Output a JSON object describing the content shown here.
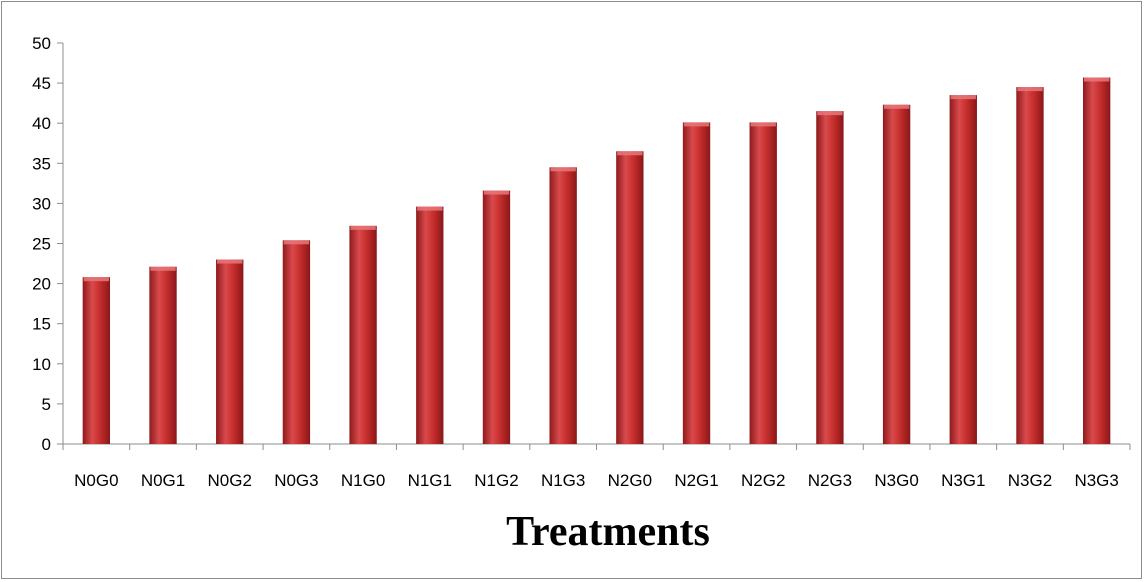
{
  "chart_data": {
    "type": "bar",
    "title": "",
    "xlabel": "Treatments",
    "ylabel": "",
    "ylim": [
      0,
      50
    ],
    "yticks": [
      0,
      5,
      10,
      15,
      20,
      25,
      30,
      35,
      40,
      45,
      50
    ],
    "categories": [
      "N0G0",
      "N0G1",
      "N0G2",
      "N0G3",
      "N1G0",
      "N1G1",
      "N1G2",
      "N1G3",
      "N2G0",
      "N2G1",
      "N2G2",
      "N2G3",
      "N3G0",
      "N3G1",
      "N3G2",
      "N3G3"
    ],
    "values": [
      20.8,
      22.1,
      23.0,
      25.4,
      27.2,
      29.6,
      31.6,
      34.5,
      36.5,
      40.1,
      40.1,
      41.5,
      42.3,
      43.5,
      44.5,
      45.7
    ],
    "bar_color": "#c0282b",
    "grid": false,
    "legend": "none"
  }
}
